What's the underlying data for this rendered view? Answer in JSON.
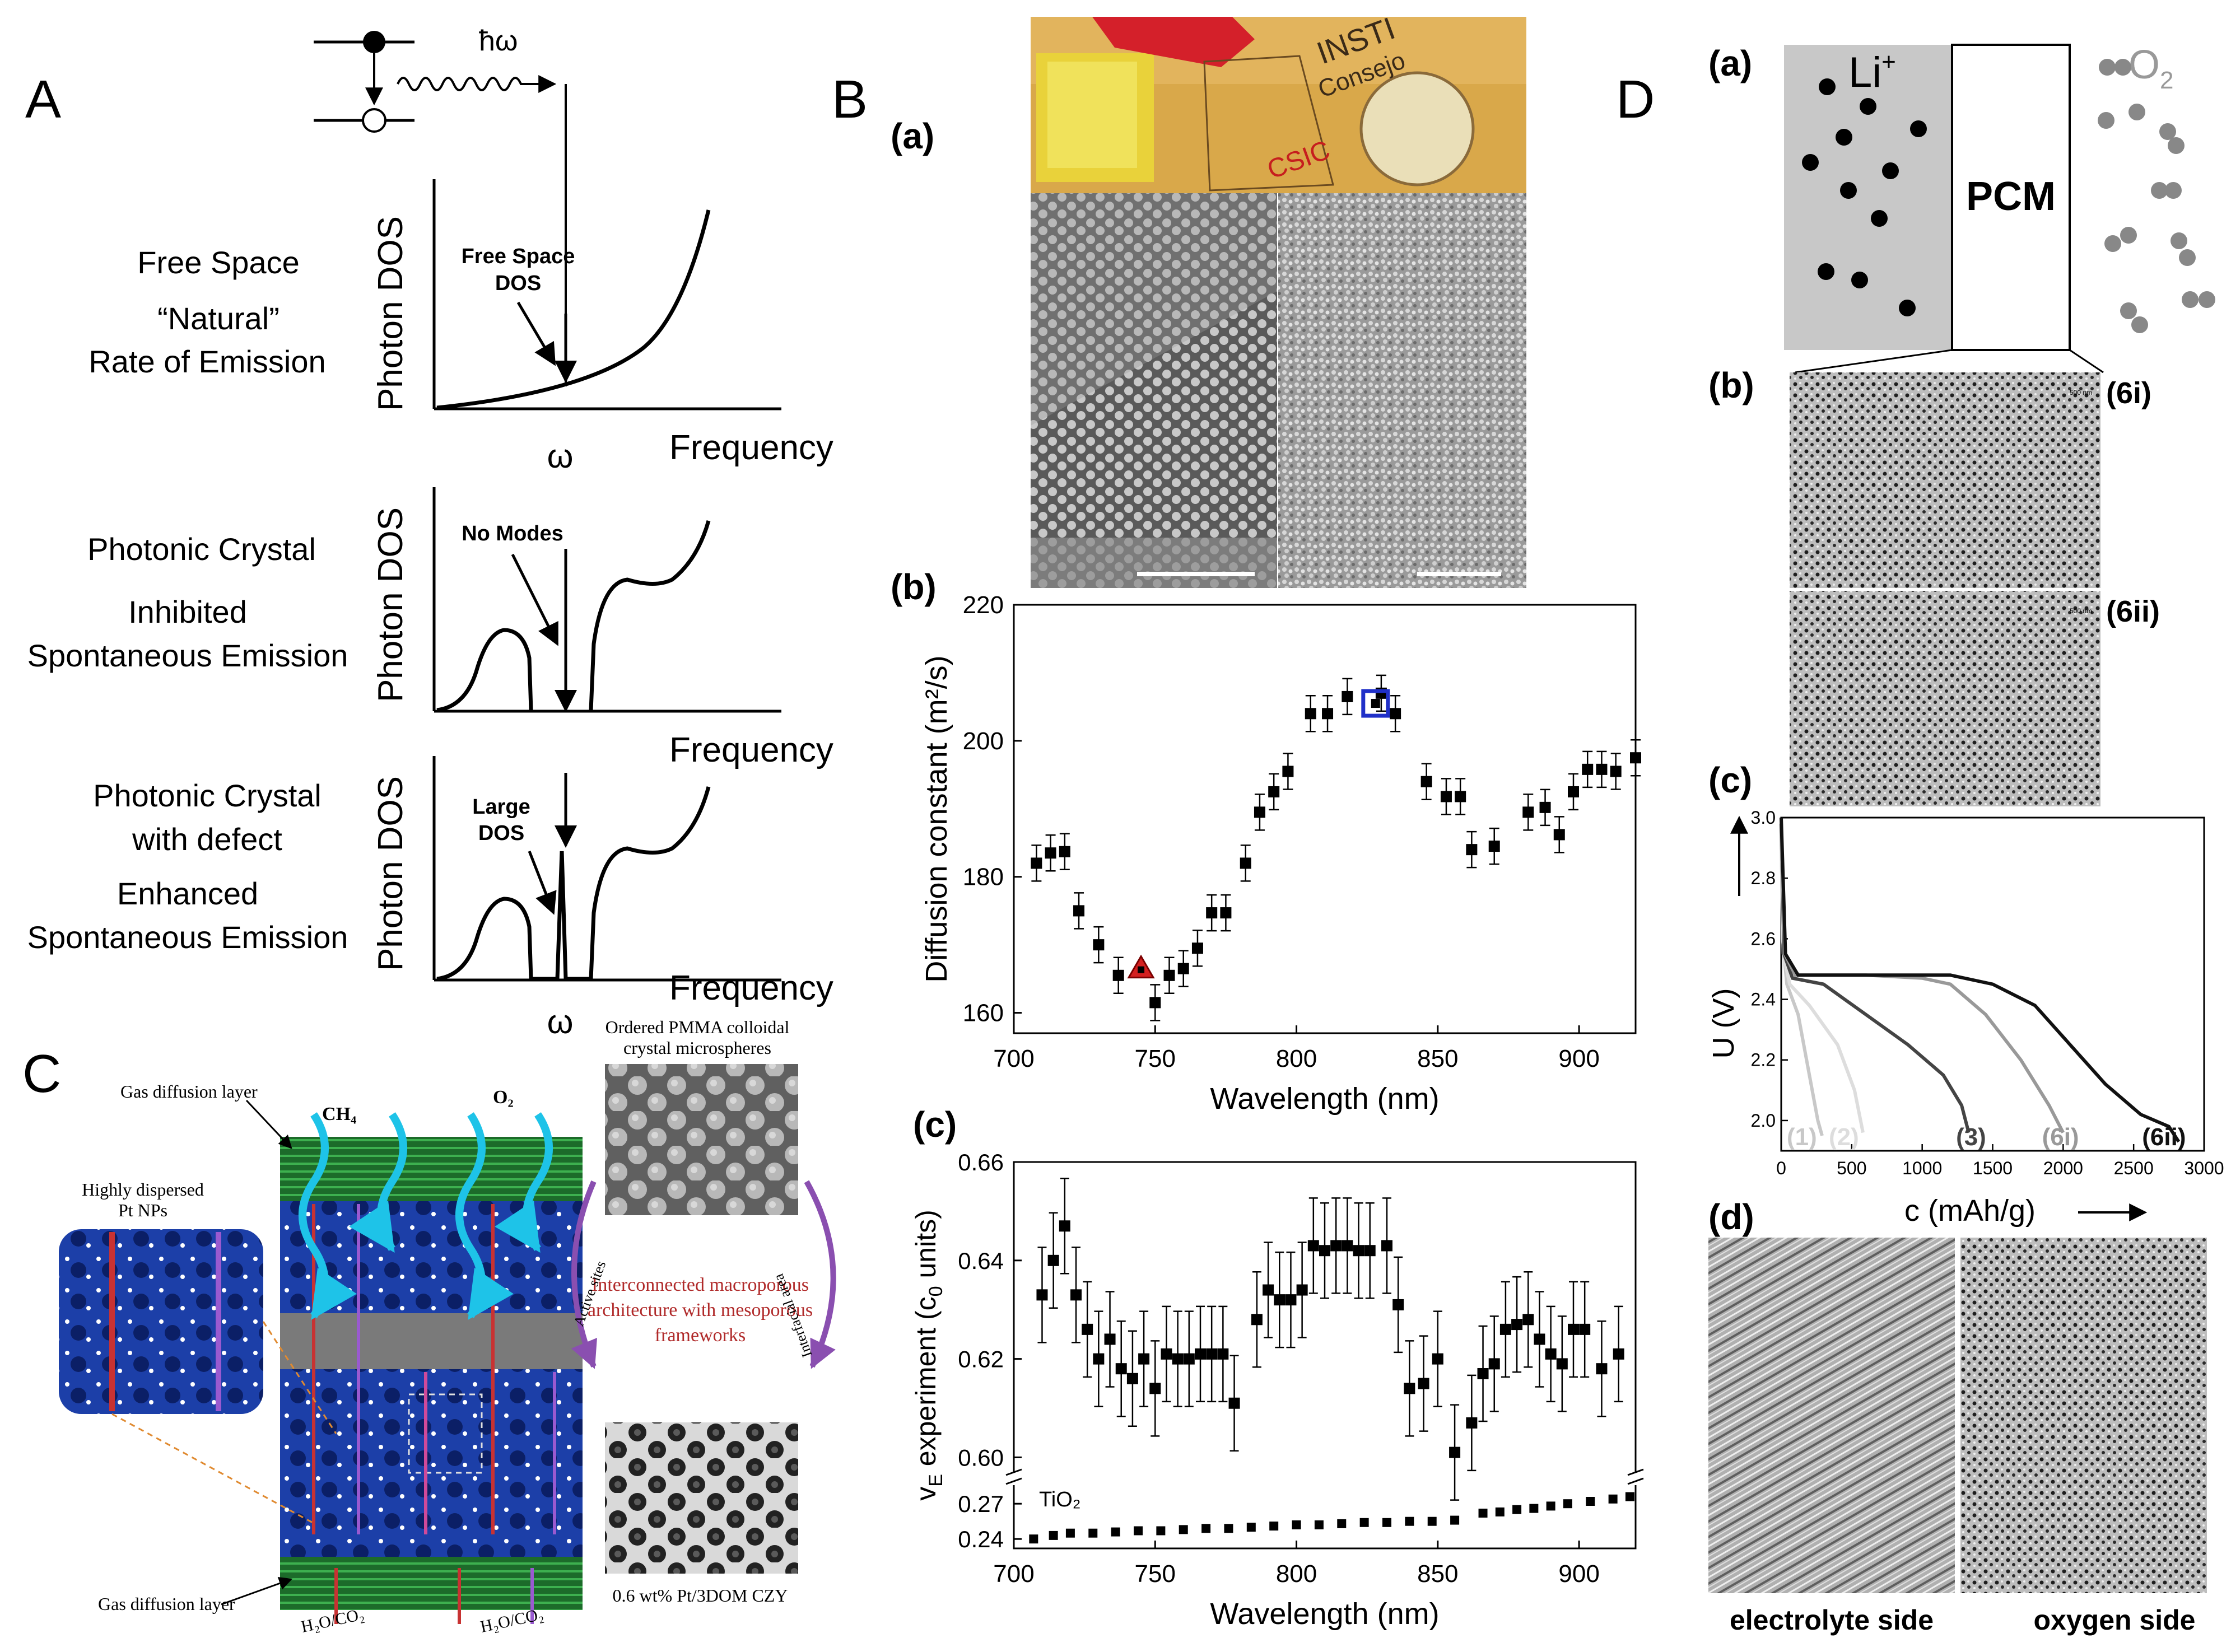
{
  "panel_a": {
    "letter": "A",
    "hbar_omega": "ħω",
    "omega": "ω",
    "rows": [
      {
        "label_lines": [
          "Free Space",
          "“Natural”",
          "Rate of Emission"
        ],
        "ylabel": "Photon DOS",
        "xlabel": "Frequency",
        "annotation": [
          "Free Space",
          "DOS"
        ]
      },
      {
        "label_lines": [
          "Photonic Crystal",
          "Inhibited",
          "Spontaneous Emission"
        ],
        "ylabel": "Photon DOS",
        "xlabel": "Frequency",
        "annotation": [
          "No Modes"
        ]
      },
      {
        "label_lines": [
          "Photonic Crystal",
          "with defect",
          "Enhanced",
          "Spontaneous Emission"
        ],
        "ylabel": "Photon DOS",
        "xlabel": "Frequency",
        "annotation": [
          "Large",
          "DOS"
        ]
      }
    ]
  },
  "panel_b": {
    "letter": "B",
    "sub_a": "(a)",
    "photo_labels": [
      "INSTI",
      "Consejo",
      "CSIC"
    ],
    "sub_b": "(b)",
    "sub_c": "(c)",
    "chart_b": {
      "type": "scatter",
      "xlabel": "Wavelength (nm)",
      "ylabel": "Diffusion constant (m²/s)",
      "xlim": [
        700,
        920
      ],
      "ylim": [
        157,
        220
      ],
      "xticks": [
        700,
        750,
        800,
        850,
        900
      ],
      "yticks": [
        160,
        180,
        200,
        220
      ],
      "points": [
        [
          708,
          182
        ],
        [
          713,
          183.5
        ],
        [
          718,
          183.7
        ],
        [
          723,
          175
        ],
        [
          730,
          170
        ],
        [
          737,
          165.5
        ],
        [
          750,
          161.5
        ],
        [
          755,
          165.5
        ],
        [
          760,
          166.5
        ],
        [
          765,
          169.5
        ],
        [
          770,
          174.7
        ],
        [
          775,
          174.7
        ],
        [
          782,
          182
        ],
        [
          787,
          189.5
        ],
        [
          792,
          192.5
        ],
        [
          797,
          195.5
        ],
        [
          805,
          204
        ],
        [
          811,
          204
        ],
        [
          818,
          206.5
        ],
        [
          830,
          207
        ],
        [
          835,
          204
        ],
        [
          846,
          194
        ],
        [
          853,
          191.8
        ],
        [
          858,
          191.8
        ],
        [
          862,
          184
        ],
        [
          870,
          184.5
        ],
        [
          882,
          189.5
        ],
        [
          888,
          190.2
        ],
        [
          893,
          186.2
        ],
        [
          898,
          192.5
        ],
        [
          903,
          195.8
        ],
        [
          908,
          195.8
        ],
        [
          913,
          195.5
        ],
        [
          920,
          197.5
        ]
      ],
      "highlight": [
        {
          "x": 745,
          "y": 166.5,
          "color": "#d42020",
          "shape": "triangle"
        },
        {
          "x": 828,
          "y": 205.5,
          "color": "#2030c8",
          "shape": "square"
        }
      ]
    },
    "chart_c": {
      "type": "scatter",
      "xlabel": "Wavelength (nm)",
      "ylabel": "vE experiment (c0 units)",
      "ylabel_main": "v",
      "ylabel_sub": "E",
      "ylabel_rest": " experiment (c",
      "ylabel_sub2": "0",
      "ylabel_end": " units)",
      "xlim": [
        700,
        920
      ],
      "ylim_upper": [
        0.598,
        0.66
      ],
      "yticks_upper": [
        0.6,
        0.62,
        0.64,
        0.66
      ],
      "yticks_lower": [
        0.24,
        0.27
      ],
      "tio2_label": "TiO₂",
      "xticks": [
        700,
        750,
        800,
        850,
        900
      ],
      "upper_points": [
        [
          710,
          0.633
        ],
        [
          714,
          0.64
        ],
        [
          718,
          0.647
        ],
        [
          722,
          0.633
        ],
        [
          726,
          0.626
        ],
        [
          730,
          0.62
        ],
        [
          734,
          0.624
        ],
        [
          738,
          0.618
        ],
        [
          742,
          0.616
        ],
        [
          746,
          0.62
        ],
        [
          750,
          0.614
        ],
        [
          754,
          0.621
        ],
        [
          758,
          0.62
        ],
        [
          762,
          0.62
        ],
        [
          766,
          0.621
        ],
        [
          770,
          0.621
        ],
        [
          774,
          0.621
        ],
        [
          778,
          0.611
        ],
        [
          786,
          0.628
        ],
        [
          790,
          0.634
        ],
        [
          794,
          0.632
        ],
        [
          798,
          0.632
        ],
        [
          802,
          0.634
        ],
        [
          806,
          0.643
        ],
        [
          810,
          0.642
        ],
        [
          814,
          0.643
        ],
        [
          818,
          0.643
        ],
        [
          822,
          0.642
        ],
        [
          826,
          0.642
        ],
        [
          832,
          0.643
        ],
        [
          836,
          0.631
        ],
        [
          840,
          0.614
        ],
        [
          845,
          0.615
        ],
        [
          850,
          0.62
        ],
        [
          856,
          0.601
        ],
        [
          862,
          0.607
        ],
        [
          866,
          0.617
        ],
        [
          870,
          0.619
        ],
        [
          874,
          0.626
        ],
        [
          878,
          0.627
        ],
        [
          882,
          0.628
        ],
        [
          886,
          0.624
        ],
        [
          890,
          0.621
        ],
        [
          894,
          0.619
        ],
        [
          898,
          0.626
        ],
        [
          902,
          0.626
        ],
        [
          908,
          0.618
        ],
        [
          914,
          0.621
        ]
      ],
      "lower_points": [
        [
          707,
          0.24
        ],
        [
          714,
          0.243
        ],
        [
          720,
          0.245
        ],
        [
          728,
          0.245
        ],
        [
          736,
          0.246
        ],
        [
          744,
          0.247
        ],
        [
          752,
          0.247
        ],
        [
          760,
          0.248
        ],
        [
          768,
          0.249
        ],
        [
          776,
          0.249
        ],
        [
          784,
          0.25
        ],
        [
          792,
          0.251
        ],
        [
          800,
          0.252
        ],
        [
          808,
          0.252
        ],
        [
          816,
          0.253
        ],
        [
          824,
          0.254
        ],
        [
          832,
          0.254
        ],
        [
          840,
          0.255
        ],
        [
          848,
          0.255
        ],
        [
          856,
          0.256
        ],
        [
          866,
          0.262
        ],
        [
          872,
          0.263
        ],
        [
          878,
          0.265
        ],
        [
          884,
          0.266
        ],
        [
          890,
          0.268
        ],
        [
          896,
          0.27
        ],
        [
          904,
          0.272
        ],
        [
          912,
          0.274
        ],
        [
          918,
          0.276
        ]
      ]
    }
  },
  "panel_c": {
    "letter": "C",
    "ch4": "CH₄",
    "o2": "O₂",
    "gas_top": "Gas diffusion layer",
    "gas_bottom": "Gas diffusion layer",
    "pt_label": [
      "Highly dispersed",
      "Pt NPs"
    ],
    "pmma_label": [
      "Ordered PMMA colloidal",
      "crystal microspheres"
    ],
    "interconnected": [
      "Interconnected macroporous",
      "architecture with mesoporous",
      "frameworks"
    ],
    "active_sites": "Active sites",
    "interfacial": "Interfacial area",
    "h2o_left": "H₂O/CO₂",
    "h2o_right": "H₂O/CO₂",
    "pt_3dom": "0.6 wt% Pt/3DOM CZY"
  },
  "panel_d": {
    "letter": "D",
    "sub_a": "(a)",
    "li": "Li",
    "li_sup": "+",
    "pcm": "PCM",
    "o2": "O",
    "o2_sub": "2",
    "sub_b": "(b)",
    "tag_6i": "(6i)",
    "tag_6ii": "(6ii)",
    "scale_500": "500 nm",
    "sub_c": "(c)",
    "sub_d": "(d)",
    "electrolyte": "electrolyte side",
    "oxygen": "oxygen side",
    "chart_c": {
      "type": "line",
      "xlabel": "c (mAh/g)",
      "ylabel": "U (V)",
      "xlim": [
        0,
        3000
      ],
      "ylim": [
        1.9,
        3.0
      ],
      "xticks": [
        0,
        500,
        1000,
        1500,
        2000,
        2500,
        3000
      ],
      "yticks": [
        2.0,
        2.2,
        2.4,
        2.6,
        2.8,
        3.0
      ],
      "series": [
        {
          "name": "(1)",
          "color": "#c8c8c8",
          "points": [
            [
              0,
              2.95
            ],
            [
              10,
              2.6
            ],
            [
              40,
              2.45
            ],
            [
              120,
              2.35
            ],
            [
              200,
              2.15
            ],
            [
              260,
              2.0
            ],
            [
              290,
              1.95
            ]
          ]
        },
        {
          "name": "(2)",
          "color": "#dddddd",
          "points": [
            [
              0,
              2.9
            ],
            [
              15,
              2.55
            ],
            [
              60,
              2.45
            ],
            [
              200,
              2.38
            ],
            [
              400,
              2.25
            ],
            [
              520,
              2.1
            ],
            [
              580,
              1.96
            ]
          ]
        },
        {
          "name": "(3)",
          "color": "#444444",
          "points": [
            [
              0,
              2.98
            ],
            [
              20,
              2.55
            ],
            [
              80,
              2.47
            ],
            [
              300,
              2.45
            ],
            [
              600,
              2.35
            ],
            [
              900,
              2.25
            ],
            [
              1150,
              2.15
            ],
            [
              1280,
              2.05
            ],
            [
              1330,
              1.96
            ]
          ]
        },
        {
          "name": "(6i)",
          "color": "#999999",
          "points": [
            [
              0,
              2.95
            ],
            [
              25,
              2.55
            ],
            [
              100,
              2.48
            ],
            [
              600,
              2.48
            ],
            [
              1000,
              2.47
            ],
            [
              1200,
              2.45
            ],
            [
              1450,
              2.35
            ],
            [
              1700,
              2.2
            ],
            [
              1900,
              2.05
            ],
            [
              2000,
              1.96
            ]
          ]
        },
        {
          "name": "(6ii)",
          "color": "#111111",
          "points": [
            [
              0,
              3.0
            ],
            [
              30,
              2.55
            ],
            [
              120,
              2.48
            ],
            [
              800,
              2.48
            ],
            [
              1200,
              2.48
            ],
            [
              1500,
              2.45
            ],
            [
              1800,
              2.38
            ],
            [
              2050,
              2.25
            ],
            [
              2300,
              2.12
            ],
            [
              2550,
              2.02
            ],
            [
              2750,
              1.98
            ],
            [
              2820,
              1.93
            ]
          ]
        }
      ]
    }
  }
}
